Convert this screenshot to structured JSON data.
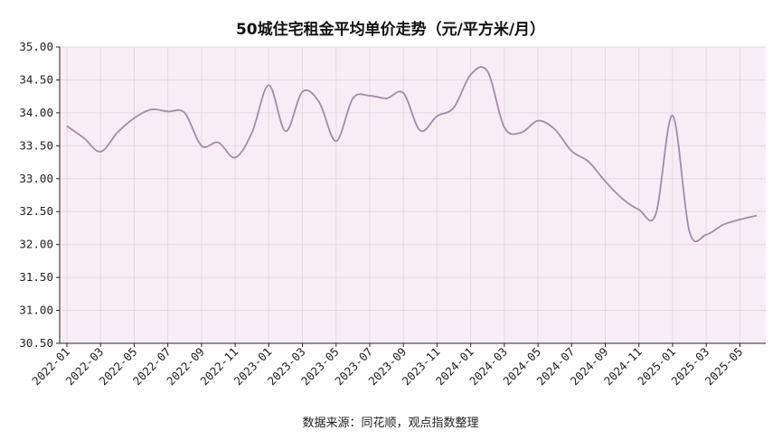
{
  "chart_data": {
    "type": "line",
    "title": "50城住宅租金平均单价走势（元/平方米/月）",
    "source": "数据来源：同花顺，观点指数整理",
    "xlabel": "",
    "ylabel": "",
    "ylim": [
      30.5,
      35.0
    ],
    "yticks": [
      "30.50",
      "31.00",
      "31.50",
      "32.00",
      "32.50",
      "33.00",
      "33.50",
      "34.00",
      "34.50",
      "35.00"
    ],
    "x_tick_labels": [
      "2022-01",
      "2022-03",
      "2022-05",
      "2022-07",
      "2022-09",
      "2022-11",
      "2023-01",
      "2023-03",
      "2023-05",
      "2023-07",
      "2023-09",
      "2023-11",
      "2024-01",
      "2024-03",
      "2024-05",
      "2024-07",
      "2024-09",
      "2024-11",
      "2025-01",
      "2025-03",
      "2025-05"
    ],
    "grid": true,
    "colors": {
      "line": "#a58aa8",
      "plot_bg": "#f8edf4",
      "grid": "#e6d8e2"
    },
    "x": [
      "2022-01",
      "2022-02",
      "2022-03",
      "2022-04",
      "2022-05",
      "2022-06",
      "2022-07",
      "2022-08",
      "2022-09",
      "2022-10",
      "2022-11",
      "2022-12",
      "2023-01",
      "2023-02",
      "2023-03",
      "2023-04",
      "2023-05",
      "2023-06",
      "2023-07",
      "2023-08",
      "2023-09",
      "2023-10",
      "2023-11",
      "2023-12",
      "2024-01",
      "2024-02",
      "2024-03",
      "2024-04",
      "2024-05",
      "2024-06",
      "2024-07",
      "2024-08",
      "2024-09",
      "2024-10",
      "2024-11",
      "2024-12",
      "2025-01",
      "2025-02",
      "2025-03",
      "2025-04",
      "2025-05",
      "2025-06"
    ],
    "series": [
      {
        "values": [
          33.8,
          33.62,
          33.41,
          33.7,
          33.92,
          34.05,
          34.02,
          34.0,
          33.5,
          33.55,
          33.32,
          33.7,
          34.42,
          33.72,
          34.32,
          34.16,
          33.57,
          34.22,
          34.26,
          34.22,
          34.3,
          33.73,
          33.95,
          34.08,
          34.58,
          34.63,
          33.78,
          33.7,
          33.88,
          33.75,
          33.42,
          33.26,
          32.96,
          32.7,
          32.53,
          32.46,
          33.96,
          32.2,
          32.15,
          32.3,
          32.38,
          32.44
        ]
      }
    ]
  }
}
